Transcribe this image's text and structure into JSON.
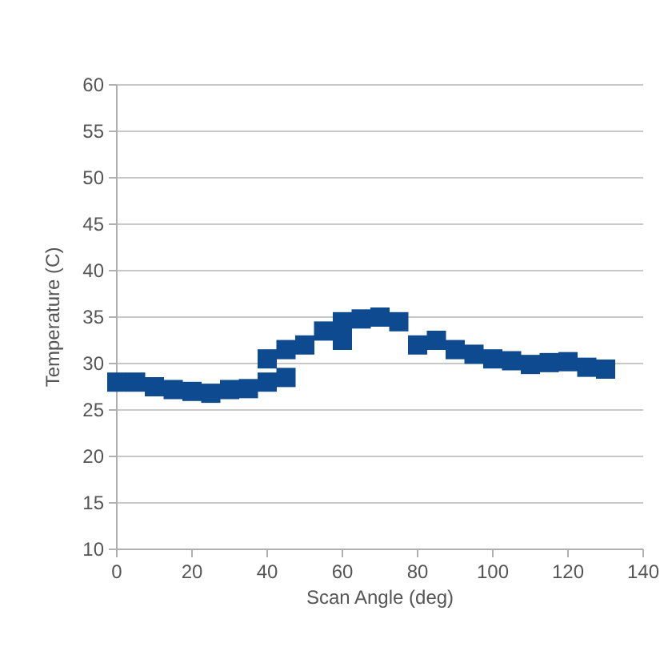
{
  "chart_data": {
    "type": "scatter",
    "xlabel": "Scan Angle (deg)",
    "ylabel": "Temperature (C)",
    "xlim": [
      0,
      140
    ],
    "xticks": [
      0,
      20,
      40,
      60,
      80,
      100,
      120,
      140
    ],
    "ylim": [
      10,
      60
    ],
    "yticks": [
      10,
      15,
      20,
      25,
      30,
      35,
      40,
      45,
      50,
      55,
      60
    ],
    "grid": "y",
    "marker": "square",
    "series": [
      {
        "color": "#0d4a8f",
        "x": [
          0,
          5,
          10,
          15,
          20,
          25,
          30,
          35,
          40,
          40,
          45,
          45,
          50,
          55,
          60,
          60,
          65,
          70,
          75,
          80,
          85,
          90,
          95,
          100,
          105,
          110,
          115,
          120,
          125,
          130
        ],
        "values": [
          28,
          28,
          27.5,
          27.2,
          27,
          26.8,
          27.2,
          27.3,
          28,
          30.5,
          31.5,
          28.5,
          32,
          33.5,
          34.5,
          32.5,
          34.8,
          35,
          34.5,
          32,
          32.5,
          31.5,
          31,
          30.5,
          30.3,
          29.9,
          30.1,
          30.2,
          29.6,
          29.4
        ]
      }
    ]
  }
}
